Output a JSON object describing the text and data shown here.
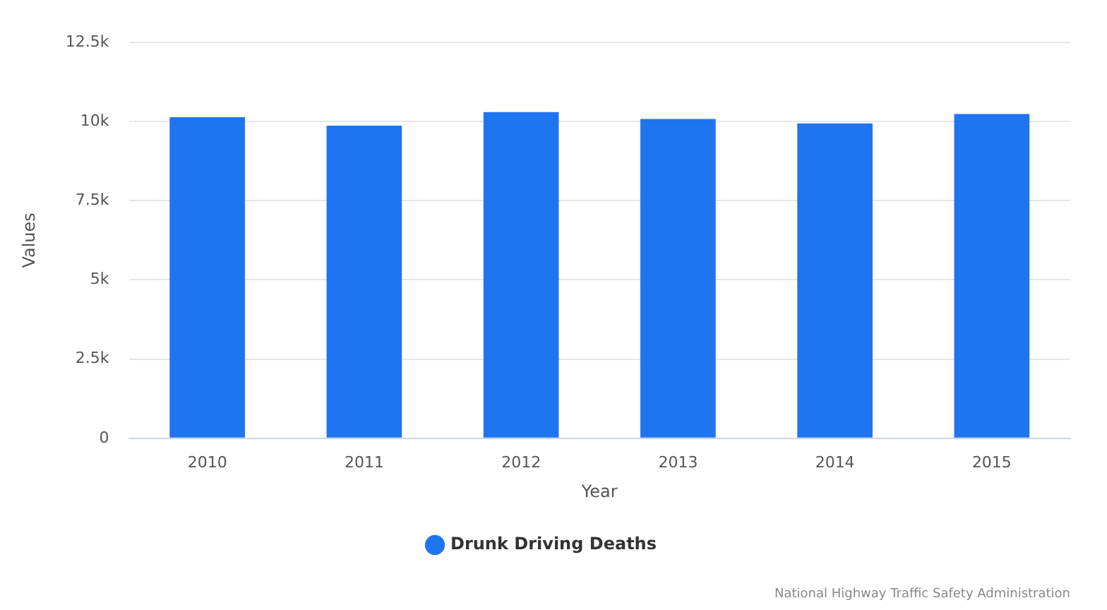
{
  "chart_data": {
    "type": "bar",
    "xlabel": "Year",
    "ylabel": "Values",
    "categories": [
      "2010",
      "2011",
      "2012",
      "2013",
      "2014",
      "2015"
    ],
    "series": [
      {
        "name": "Drunk Driving Deaths",
        "color": "#1f75f0",
        "values": [
          10140,
          9870,
          10300,
          10080,
          9940,
          10240
        ]
      }
    ],
    "ylim": [
      0,
      12500
    ],
    "yticks": [
      {
        "value": 0,
        "label": "0"
      },
      {
        "value": 2500,
        "label": "2.5k"
      },
      {
        "value": 5000,
        "label": "5k"
      },
      {
        "value": 7500,
        "label": "7.5k"
      },
      {
        "value": 10000,
        "label": "10k"
      },
      {
        "value": 12500,
        "label": "12.5k"
      }
    ],
    "grid": "y",
    "legend": "bottom",
    "annotations": [
      "National Highway Traffic Safety Administration"
    ]
  }
}
